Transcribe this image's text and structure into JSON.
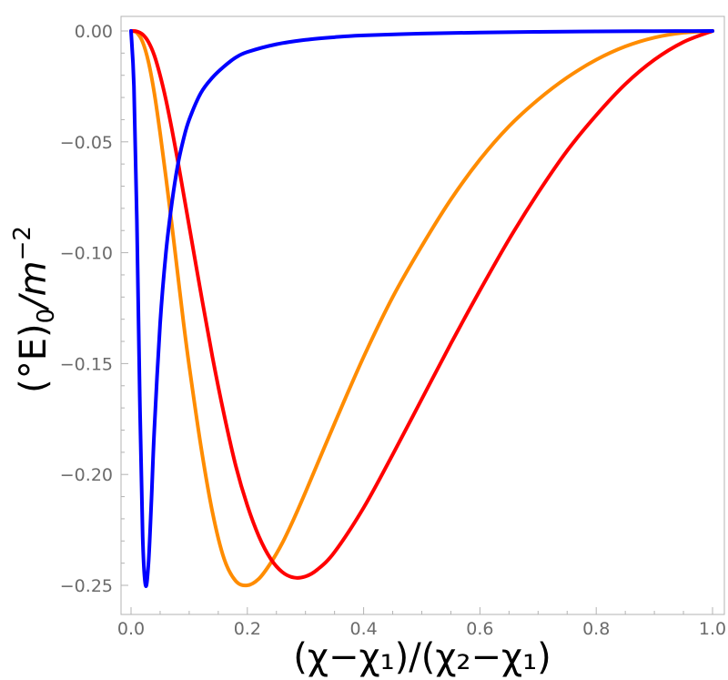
{
  "chart_data": {
    "type": "line",
    "xlabel": "(χ−χ₁)/(χ₂−χ₁)",
    "ylabel_parts": {
      "base": "(°E)",
      "sub": "0",
      "mid": "/m",
      "sup": "−2"
    },
    "xlim": [
      0,
      1
    ],
    "ylim": [
      -0.25,
      0
    ],
    "x_ticks": [
      0.0,
      0.2,
      0.4,
      0.6,
      0.8,
      1.0
    ],
    "x_tick_labels": [
      "0.0",
      "0.2",
      "0.4",
      "0.6",
      "0.8",
      "1.0"
    ],
    "y_ticks": [
      0.0,
      -0.05,
      -0.1,
      -0.15,
      -0.2,
      -0.25
    ],
    "y_tick_labels": [
      "0.00",
      "−0.05",
      "−0.10",
      "−0.15",
      "−0.20",
      "−0.25"
    ],
    "grid": false,
    "series": [
      {
        "color": "#ff8c00",
        "x": [
          0,
          0.01,
          0.02,
          0.03,
          0.04,
          0.05,
          0.06,
          0.07,
          0.08,
          0.09,
          0.1,
          0.12,
          0.14,
          0.16,
          0.18,
          0.2,
          0.22,
          0.24,
          0.26,
          0.28,
          0.3,
          0.35,
          0.4,
          0.45,
          0.5,
          0.55,
          0.6,
          0.65,
          0.7,
          0.75,
          0.8,
          0.85,
          0.9,
          0.95,
          1.0
        ],
        "y": [
          0,
          -0.0008,
          -0.005,
          -0.014,
          -0.028,
          -0.046,
          -0.066,
          -0.087,
          -0.109,
          -0.131,
          -0.151,
          -0.187,
          -0.217,
          -0.238,
          -0.248,
          -0.25,
          -0.247,
          -0.24,
          -0.231,
          -0.22,
          -0.208,
          -0.177,
          -0.147,
          -0.12,
          -0.097,
          -0.076,
          -0.058,
          -0.043,
          -0.031,
          -0.021,
          -0.013,
          -0.007,
          -0.003,
          -0.0008,
          0
        ]
      },
      {
        "color": "#ff0000",
        "x": [
          0,
          0.01,
          0.02,
          0.03,
          0.04,
          0.05,
          0.06,
          0.07,
          0.08,
          0.09,
          0.1,
          0.12,
          0.14,
          0.16,
          0.18,
          0.2,
          0.22,
          0.24,
          0.26,
          0.28,
          0.3,
          0.32,
          0.35,
          0.4,
          0.45,
          0.5,
          0.55,
          0.6,
          0.65,
          0.7,
          0.75,
          0.8,
          0.85,
          0.9,
          0.95,
          1.0
        ],
        "y": [
          0,
          -0.0002,
          -0.0016,
          -0.005,
          -0.011,
          -0.02,
          -0.031,
          -0.044,
          -0.058,
          -0.073,
          -0.088,
          -0.118,
          -0.147,
          -0.173,
          -0.196,
          -0.214,
          -0.228,
          -0.238,
          -0.244,
          -0.2465,
          -0.246,
          -0.243,
          -0.235,
          -0.215,
          -0.191,
          -0.166,
          -0.141,
          -0.117,
          -0.094,
          -0.073,
          -0.054,
          -0.038,
          -0.024,
          -0.013,
          -0.005,
          0
        ]
      },
      {
        "color": "#0000ff",
        "x": [
          0,
          0.005,
          0.01,
          0.015,
          0.02,
          0.025,
          0.03,
          0.035,
          0.04,
          0.05,
          0.06,
          0.07,
          0.08,
          0.09,
          0.1,
          0.12,
          0.14,
          0.16,
          0.18,
          0.2,
          0.25,
          0.3,
          0.35,
          0.4,
          0.5,
          0.6,
          0.7,
          0.8,
          0.9,
          1.0
        ],
        "y": [
          0,
          -0.025,
          -0.085,
          -0.165,
          -0.228,
          -0.25,
          -0.24,
          -0.212,
          -0.18,
          -0.132,
          -0.1,
          -0.078,
          -0.061,
          -0.049,
          -0.04,
          -0.028,
          -0.021,
          -0.016,
          -0.012,
          -0.0095,
          -0.006,
          -0.004,
          -0.0028,
          -0.002,
          -0.0012,
          -0.0007,
          -0.0004,
          -0.0002,
          -0.0001,
          0
        ]
      }
    ]
  }
}
